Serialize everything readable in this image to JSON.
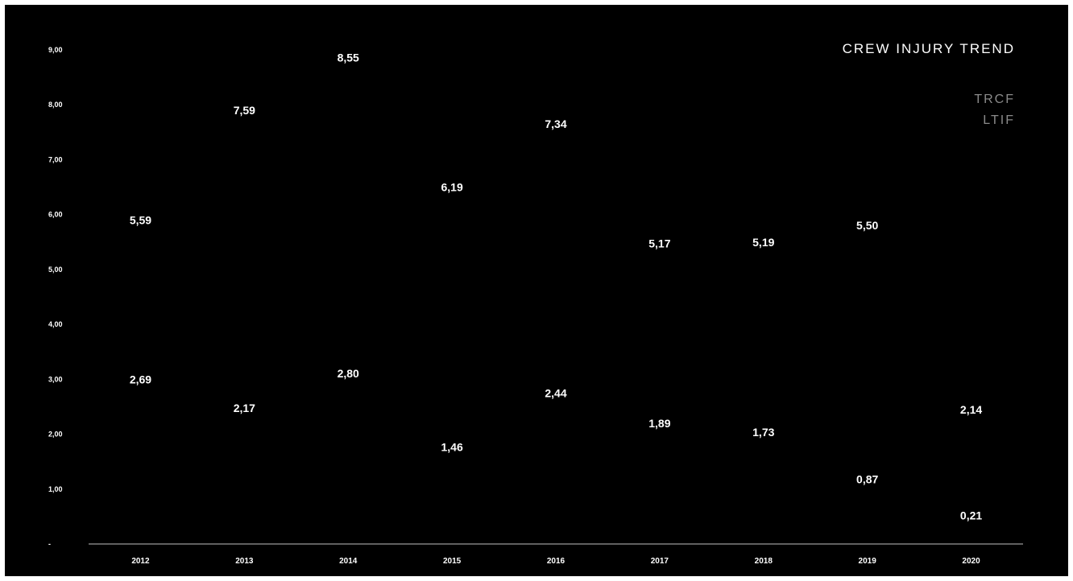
{
  "chart_data": {
    "type": "line",
    "title": "CREW INJURY TREND",
    "xlabel": "",
    "ylabel": "",
    "categories": [
      "2012",
      "2013",
      "2014",
      "2015",
      "2016",
      "2017",
      "2018",
      "2019",
      "2020"
    ],
    "ylim": [
      0,
      9
    ],
    "yticks": [
      0,
      1,
      2,
      3,
      4,
      5,
      6,
      7,
      8,
      9
    ],
    "ytick_labels": [
      "-",
      "1,00",
      "2,00",
      "3,00",
      "4,00",
      "5,00",
      "6,00",
      "7,00",
      "8,00",
      "9,00"
    ],
    "legend_position": "top-right",
    "grid": false,
    "series": [
      {
        "name": "TRCF",
        "values": [
          5.59,
          7.59,
          8.55,
          6.19,
          7.34,
          5.17,
          5.19,
          5.5,
          null
        ],
        "labels": [
          "5,59",
          "7,59",
          "8,55",
          "6,19",
          "7,34",
          "5,17",
          "5,19",
          "5,50",
          null
        ],
        "color": "#000000"
      },
      {
        "name": "LTIF",
        "values": [
          2.69,
          2.17,
          2.8,
          1.46,
          2.44,
          1.89,
          1.73,
          0.87,
          0.21
        ],
        "labels": [
          "2,69",
          "2,17",
          "2,80",
          "1,46",
          "2,44",
          "1,89",
          "1,73",
          "0,87",
          "0,21"
        ],
        "color": "#000000"
      }
    ],
    "extra_labels": [
      {
        "category": "2020",
        "value": 2.14,
        "label": "2,14"
      }
    ]
  },
  "colors": {
    "background": "#000000",
    "text": "#ffffff",
    "legend_text": "#8a8a8a",
    "axis_line": "#bfbfbf"
  }
}
